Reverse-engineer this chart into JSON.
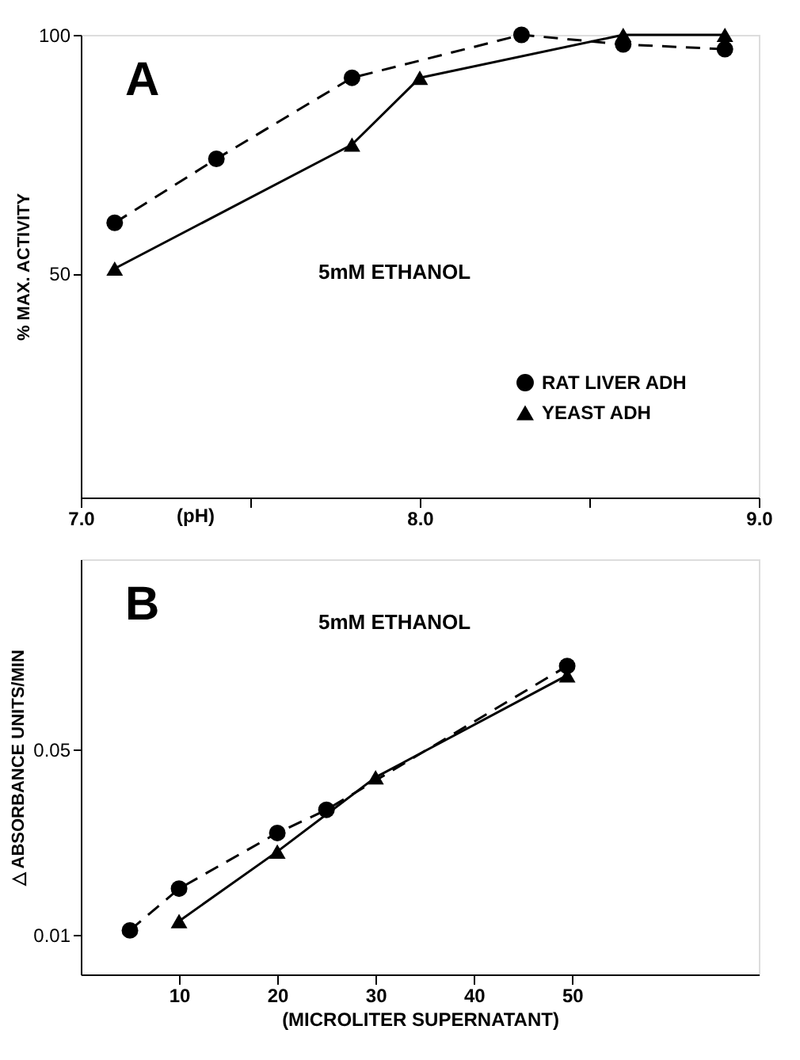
{
  "chart_data": [
    {
      "type": "line",
      "title": "A",
      "xlabel": "(pH)",
      "ylabel": "% MAX. ACTIVITY",
      "annotations": [
        "5mM ETHANOL"
      ],
      "xlim": [
        7.0,
        9.0
      ],
      "xticks": [
        {
          "value": 7.0,
          "label": "7.0"
        },
        {
          "value": 7.5,
          "label": null
        },
        {
          "value": 8.0,
          "label": "8.0"
        },
        {
          "value": 8.5,
          "label": null
        },
        {
          "value": 9.0,
          "label": "9.0"
        }
      ],
      "ylim": [
        3,
        100
      ],
      "yticks": [
        50,
        100
      ],
      "grid": false,
      "legend": "bottom right",
      "series": [
        {
          "name": "RAT LIVER ADH",
          "color": "#000000",
          "marker": "circle",
          "line_style": "dashed",
          "x": [
            7.1,
            7.4,
            7.8,
            8.3,
            8.6,
            8.9
          ],
          "values": [
            60.6,
            74,
            91,
            100,
            98,
            97
          ]
        },
        {
          "name": "YEAST ADH",
          "color": "#000000",
          "marker": "triangle",
          "line_style": "solid",
          "x": [
            7.1,
            7.8,
            8.0,
            8.6,
            8.9
          ],
          "values": [
            51,
            77,
            91,
            100,
            100
          ]
        }
      ]
    },
    {
      "type": "line",
      "title": "B",
      "xlabel": "(MICROLITER SUPERNATANT)",
      "ylabel": "△ ABSORBANCE UNITS/MIN",
      "annotations": [
        "5mM ETHANOL"
      ],
      "xlim": [
        0,
        69
      ],
      "xticks": [
        10,
        20,
        30,
        40,
        50
      ],
      "ylim": [
        0.0015,
        0.091
      ],
      "yticks": [
        0.01,
        0.05
      ],
      "grid": false,
      "series": [
        {
          "color": "#000000",
          "marker": "circle",
          "line_style": "dashed",
          "x": [
            5,
            10,
            20,
            25,
            49.5
          ],
          "values": [
            0.011,
            0.02,
            0.032,
            0.037,
            0.068
          ]
        },
        {
          "color": "#000000",
          "marker": "triangle",
          "line_style": "solid",
          "x": [
            10,
            20,
            30,
            49.5
          ],
          "values": [
            0.013,
            0.028,
            0.044,
            0.066
          ]
        }
      ]
    }
  ]
}
